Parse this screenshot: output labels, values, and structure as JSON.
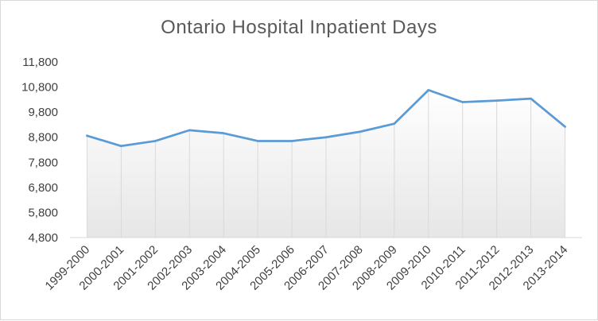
{
  "chart_data": {
    "type": "area",
    "title": "Ontario Hospital Inpatient Days",
    "xlabel": "",
    "ylabel": "",
    "categories": [
      "1999-2000",
      "2000-2001",
      "2001-2002",
      "2002-2003",
      "2003-2004",
      "2004-2005",
      "2005-2006",
      "2006-2007",
      "2007-2008",
      "2008-2009",
      "2009-2010",
      "2010-2011",
      "2011-2012",
      "2012-2013",
      "2013-2014"
    ],
    "series": [
      {
        "values": [
          8860,
          8450,
          8650,
          9080,
          8960,
          8650,
          8650,
          8800,
          9020,
          9340,
          10680,
          10200,
          10260,
          10340,
          9220
        ]
      }
    ],
    "ylim": [
      4800,
      11800
    ],
    "yticks": [
      4800,
      5800,
      6800,
      7800,
      8800,
      9800,
      10800,
      11800
    ],
    "ytick_labels": [
      "4,800",
      "5,800",
      "6,800",
      "7,800",
      "8,800",
      "9,800",
      "10,800",
      "11,800"
    ],
    "grid": false,
    "legend": "none",
    "colors": {
      "line": "#5b9bd5",
      "area_top": "#ffffff",
      "area_bottom": "#e6e6e6",
      "drop_lines": "#d9d9d9",
      "axis": "#d9d9d9",
      "text": "#404040",
      "title": "#595959"
    }
  }
}
